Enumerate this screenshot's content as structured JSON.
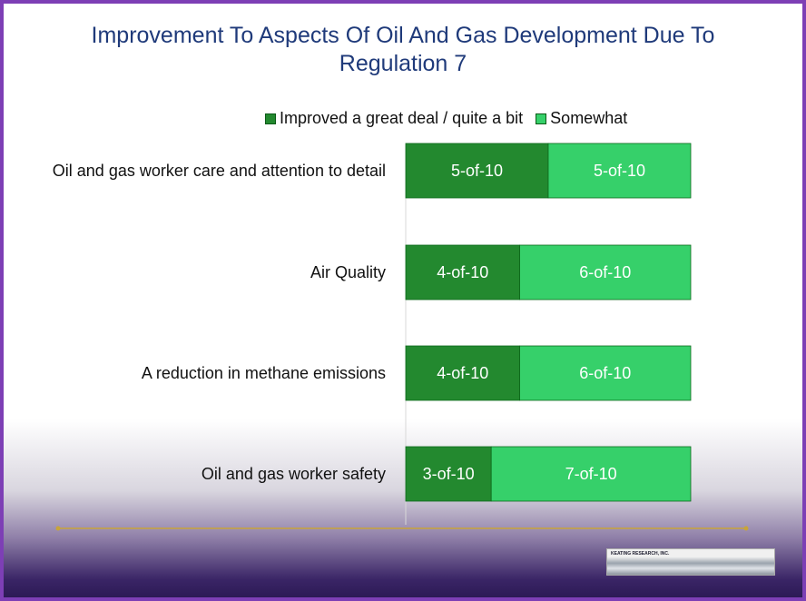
{
  "chart_data": {
    "type": "stacked-barh",
    "title": "Improvement To Aspects Of Oil And Gas Development Due To Regulation 7",
    "categories": [
      "Oil and gas worker care and attention to detail",
      "Air Quality",
      "A reduction in methane emissions",
      "Oil and gas worker safety"
    ],
    "series": [
      {
        "name": "Improved a great deal / quite a bit",
        "color": "#23892f",
        "values": [
          5,
          4,
          4,
          3
        ],
        "value_labels": [
          "5-of-10",
          "4-of-10",
          "4-of-10",
          "3-of-10"
        ]
      },
      {
        "name": "Somewhat",
        "color": "#36d06a",
        "values": [
          5,
          6,
          6,
          7
        ],
        "value_labels": [
          "5-of-10",
          "6-of-10",
          "6-of-10",
          "7-of-10"
        ]
      }
    ],
    "xlim": [
      0,
      10
    ],
    "legend": "top"
  },
  "logo": "KEATING RESEARCH, INC."
}
